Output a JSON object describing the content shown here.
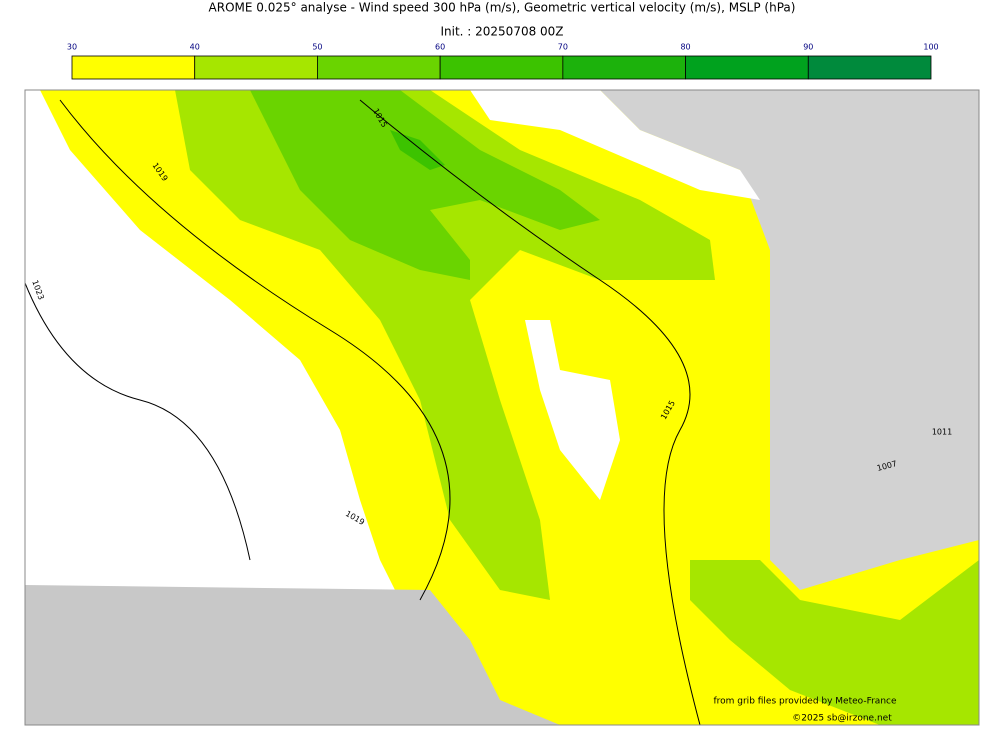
{
  "header": {
    "title": "AROME 0.025° analyse - Wind speed 300 hPa (m/s), Geometric vertical velocity (m/s), MSLP (hPa)",
    "subtitle": "Init. : 20250708 00Z"
  },
  "colorbar": {
    "ticks": [
      30,
      40,
      50,
      60,
      70,
      80,
      90,
      100
    ],
    "colors": [
      "#ffff00",
      "#a6e600",
      "#6ad400",
      "#3cc300",
      "#1cb20c",
      "#00a21e",
      "#008a3c",
      "#00784a"
    ]
  },
  "map": {
    "isobar_labels": [
      1015,
      1019,
      1023,
      1015,
      1019,
      1011,
      1007
    ]
  },
  "credits": {
    "source": "from grib files provided by Meteo-France",
    "copyright": "©2025 sb@irzone.net"
  }
}
